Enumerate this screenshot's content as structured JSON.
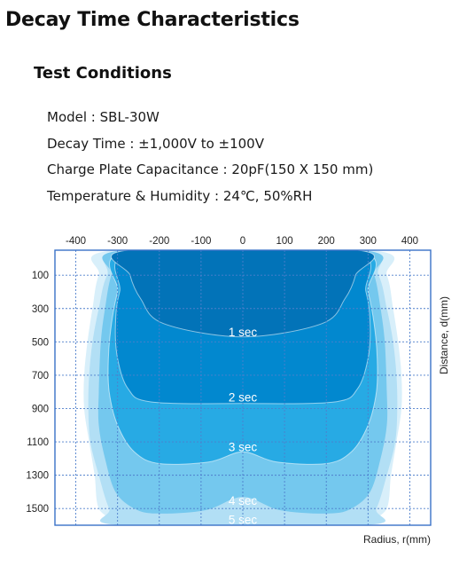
{
  "page": {
    "title": "Decay Time Characteristics"
  },
  "conditions": {
    "heading": "Test Conditions",
    "items": [
      "Model : SBL-30W",
      "Decay Time : ±1,000V to ±100V",
      "Charge Plate Capacitance : 20pF(150 X 150 mm)",
      "Temperature & Humidity : 24℃, 50%RH"
    ]
  },
  "chart_data": {
    "type": "area",
    "subtype": "decay-time contour map",
    "title": "",
    "xlabel": "Radius, r(mm)",
    "ylabel": "Distance, d(mm)",
    "x_ticks": [
      "-400",
      "-300",
      "-200",
      "-100",
      "0",
      "100",
      "200",
      "300",
      "400"
    ],
    "y_ticks": [
      "100",
      "300",
      "500",
      "700",
      "900",
      "1100",
      "1300",
      "1500"
    ],
    "xlim": [
      -450,
      450
    ],
    "ylim": [
      -50,
      1600
    ],
    "y_inverted": true,
    "x_axis_position": "top",
    "y_axis_label_position": "right",
    "grid": true,
    "colors": {
      "frame": "#3a72c8",
      "grid": "#4e7fcc",
      "zones": [
        "#d8effa",
        "#b2dff5",
        "#74c8ee",
        "#27aae4",
        "#0288cf",
        "#0273b8"
      ]
    },
    "series": [
      {
        "name": "outer",
        "boundary": [
          [
            -450,
            1600
          ],
          [
            -305,
            1600
          ],
          [
            -345,
            1500
          ],
          [
            -355,
            1300
          ],
          [
            -368,
            1100
          ],
          [
            -380,
            900
          ],
          [
            -380,
            700
          ],
          [
            -372,
            500
          ],
          [
            -360,
            300
          ],
          [
            -345,
            100
          ],
          [
            -305,
            -50
          ],
          [
            305,
            -50
          ],
          [
            345,
            100
          ],
          [
            360,
            300
          ],
          [
            372,
            500
          ],
          [
            380,
            700
          ],
          [
            380,
            900
          ],
          [
            368,
            1100
          ],
          [
            355,
            1300
          ],
          [
            345,
            1500
          ],
          [
            305,
            1600
          ],
          [
            450,
            1600
          ]
        ]
      },
      {
        "name": "5 sec",
        "boundary": [
          [
            -290,
            1600
          ],
          [
            -320,
            1500
          ],
          [
            -345,
            1300
          ],
          [
            -365,
            1100
          ],
          [
            -370,
            900
          ],
          [
            -368,
            700
          ],
          [
            -360,
            500
          ],
          [
            -345,
            300
          ],
          [
            -325,
            100
          ],
          [
            -275,
            -50
          ],
          [
            275,
            -50
          ],
          [
            325,
            100
          ],
          [
            345,
            300
          ],
          [
            360,
            500
          ],
          [
            368,
            700
          ],
          [
            370,
            900
          ],
          [
            365,
            1100
          ],
          [
            345,
            1300
          ],
          [
            320,
            1500
          ],
          [
            290,
            1600
          ]
        ]
      },
      {
        "name": "4 sec",
        "boundary": [
          [
            -205,
            1530
          ],
          [
            -260,
            1500
          ],
          [
            -305,
            1400
          ],
          [
            -330,
            1200
          ],
          [
            -345,
            1000
          ],
          [
            -345,
            800
          ],
          [
            -340,
            500
          ],
          [
            -330,
            300
          ],
          [
            -315,
            100
          ],
          [
            -285,
            -50
          ],
          [
            285,
            -50
          ],
          [
            315,
            100
          ],
          [
            330,
            300
          ],
          [
            340,
            500
          ],
          [
            345,
            800
          ],
          [
            345,
            1000
          ],
          [
            330,
            1200
          ],
          [
            305,
            1400
          ],
          [
            260,
            1500
          ],
          [
            205,
            1530
          ],
          [
            90,
            1510
          ],
          [
            0,
            1430
          ],
          [
            -90,
            1510
          ]
        ]
      },
      {
        "name": "3 sec",
        "boundary": [
          [
            -200,
            1230
          ],
          [
            -260,
            1160
          ],
          [
            -300,
            1000
          ],
          [
            -320,
            800
          ],
          [
            -322,
            600
          ],
          [
            -315,
            400
          ],
          [
            -300,
            200
          ],
          [
            -270,
            -50
          ],
          [
            270,
            -50
          ],
          [
            300,
            200
          ],
          [
            315,
            400
          ],
          [
            322,
            600
          ],
          [
            320,
            800
          ],
          [
            300,
            1000
          ],
          [
            260,
            1160
          ],
          [
            200,
            1230
          ],
          [
            80,
            1220
          ],
          [
            0,
            1160
          ],
          [
            -80,
            1220
          ]
        ]
      },
      {
        "name": "2 sec",
        "boundary": [
          [
            -220,
            860
          ],
          [
            -275,
            780
          ],
          [
            -300,
            600
          ],
          [
            -305,
            400
          ],
          [
            -295,
            200
          ],
          [
            -255,
            -50
          ],
          [
            255,
            -50
          ],
          [
            295,
            200
          ],
          [
            305,
            400
          ],
          [
            300,
            600
          ],
          [
            275,
            780
          ],
          [
            220,
            860
          ],
          [
            0,
            870
          ]
        ]
      },
      {
        "name": "1 sec",
        "boundary": [
          [
            -190,
            390
          ],
          [
            -245,
            240
          ],
          [
            -270,
            100
          ],
          [
            -275,
            -50
          ],
          [
            275,
            -50
          ],
          [
            270,
            100
          ],
          [
            245,
            240
          ],
          [
            190,
            390
          ],
          [
            0,
            470
          ]
        ]
      }
    ],
    "labels": [
      {
        "text": "1 sec",
        "x": 0,
        "y": 440
      },
      {
        "text": "2 sec",
        "x": 0,
        "y": 830
      },
      {
        "text": "3 sec",
        "x": 0,
        "y": 1130
      },
      {
        "text": "4 sec",
        "x": 0,
        "y": 1450
      },
      {
        "text": "5 sec",
        "x": 0,
        "y": 1565
      }
    ]
  }
}
